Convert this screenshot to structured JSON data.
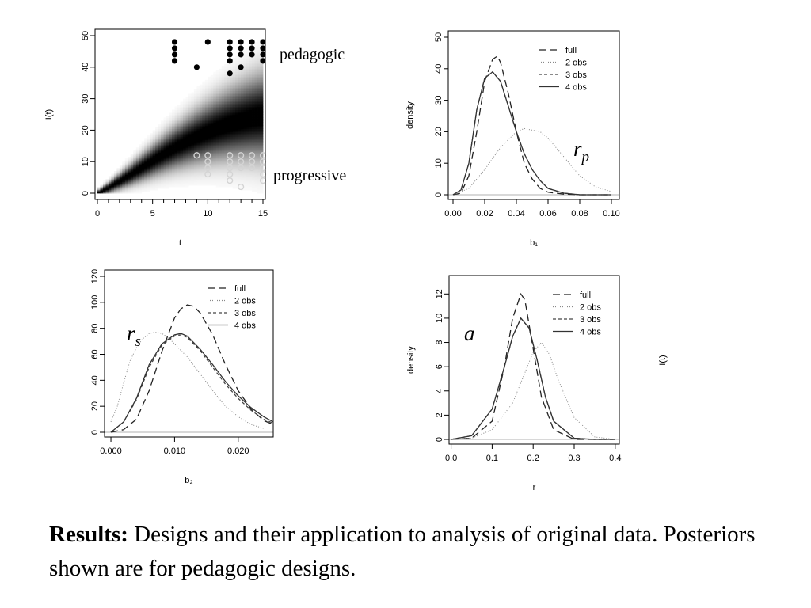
{
  "chart_data": [
    {
      "id": "design",
      "type": "heatmap",
      "xlabel": "t",
      "ylabel": "I(t)",
      "xlim": [
        0,
        15
      ],
      "ylim": [
        0,
        50
      ],
      "xticks": [
        0,
        5,
        10,
        15
      ],
      "yticks": [
        0,
        10,
        20,
        30,
        40,
        50
      ],
      "mean_curve": {
        "t": [
          0,
          1,
          2,
          3,
          4,
          5,
          6,
          7,
          8,
          9,
          10,
          11,
          12,
          13,
          14,
          15
        ],
        "I": [
          0,
          1.8,
          3.8,
          5.9,
          8.1,
          10.3,
          12.4,
          14.4,
          16.2,
          17.9,
          19.4,
          20.8,
          22.0,
          23.0,
          23.9,
          24.6
        ]
      },
      "annotations": [
        {
          "name": "pedagogic",
          "text": "pedagogic"
        },
        {
          "name": "progressive",
          "text": "progressive"
        }
      ],
      "pedagogic_points": [
        [
          7,
          48
        ],
        [
          7,
          46
        ],
        [
          7,
          44
        ],
        [
          7,
          42
        ],
        [
          9,
          40
        ],
        [
          10,
          48
        ],
        [
          12,
          48
        ],
        [
          12,
          46
        ],
        [
          12,
          44
        ],
        [
          12,
          42
        ],
        [
          12,
          38
        ],
        [
          13,
          48
        ],
        [
          13,
          46
        ],
        [
          13,
          44
        ],
        [
          13,
          40
        ],
        [
          14,
          48
        ],
        [
          14,
          46
        ],
        [
          14,
          44
        ],
        [
          15,
          48
        ],
        [
          15,
          46
        ],
        [
          15,
          44
        ],
        [
          15,
          42
        ]
      ],
      "progressive_points": [
        [
          9,
          12
        ],
        [
          10,
          12
        ],
        [
          10,
          10
        ],
        [
          10,
          8
        ],
        [
          10,
          6
        ],
        [
          12,
          12
        ],
        [
          12,
          10
        ],
        [
          12,
          8
        ],
        [
          12,
          6
        ],
        [
          12,
          4
        ],
        [
          13,
          12
        ],
        [
          13,
          10
        ],
        [
          13,
          8
        ],
        [
          13,
          2
        ],
        [
          14,
          12
        ],
        [
          14,
          10
        ],
        [
          14,
          8
        ],
        [
          15,
          12
        ],
        [
          15,
          10
        ],
        [
          15,
          8
        ],
        [
          15,
          6
        ],
        [
          15,
          4
        ]
      ]
    },
    {
      "id": "rp",
      "type": "line",
      "xlabel": "b₁",
      "ylabel": "density",
      "xlim": [
        -0.003,
        0.105
      ],
      "ylim": [
        0,
        50
      ],
      "xticks": [
        "0.00",
        "0.02",
        "0.04",
        "0.06",
        "0.08",
        "0.10"
      ],
      "yticks": [
        0,
        10,
        20,
        30,
        40,
        50
      ],
      "legend": "top-right",
      "annotation": {
        "name": "r",
        "sub": "p"
      },
      "series": [
        {
          "name": "full",
          "dash": "9,5",
          "color": "#222222",
          "x": [
            0,
            0.005,
            0.01,
            0.015,
            0.02,
            0.025,
            0.028,
            0.03,
            0.035,
            0.04,
            0.045,
            0.05,
            0.055,
            0.06,
            0.07,
            0.08,
            0.09,
            0.1
          ],
          "y": [
            0,
            0.5,
            6,
            20,
            36,
            43,
            44,
            42,
            32,
            20,
            10,
            5,
            2,
            0.8,
            0.2,
            0,
            0,
            0
          ]
        },
        {
          "name": "2 obs",
          "dash": "1,2",
          "color": "#888888",
          "x": [
            0,
            0.01,
            0.02,
            0.03,
            0.04,
            0.045,
            0.05,
            0.055,
            0.06,
            0.065,
            0.07,
            0.08,
            0.09,
            0.1
          ],
          "y": [
            0,
            2,
            8,
            15,
            20,
            21,
            20.5,
            20,
            18,
            15,
            12,
            6,
            2.5,
            1
          ]
        },
        {
          "name": "3 obs",
          "dash": "4,3",
          "color": "#444444",
          "x": [
            0,
            0.005,
            0.01,
            0.015,
            0.02,
            0.025,
            0.03,
            0.035,
            0.04,
            0.045,
            0.05,
            0.055,
            0.06,
            0.07,
            0.08,
            0.09,
            0.1
          ],
          "y": [
            0,
            1.5,
            10,
            27,
            37,
            39,
            36,
            28,
            20,
            13,
            8,
            4.5,
            2,
            0.5,
            0,
            0,
            0
          ]
        },
        {
          "name": "4 obs",
          "dash": "",
          "color": "#333333",
          "x": [
            0,
            0.005,
            0.01,
            0.015,
            0.02,
            0.025,
            0.03,
            0.035,
            0.04,
            0.045,
            0.05,
            0.055,
            0.06,
            0.07,
            0.08,
            0.09,
            0.1
          ],
          "y": [
            0,
            1.5,
            10,
            27,
            37,
            39,
            36,
            28,
            20,
            13,
            8,
            4.5,
            2,
            0.5,
            0,
            0,
            0
          ]
        }
      ]
    },
    {
      "id": "rs",
      "type": "line",
      "xlabel": "b₂",
      "ylabel": "",
      "xlim": [
        -0.001,
        0.0255
      ],
      "ylim": [
        0,
        120
      ],
      "xticks": [
        "0.000",
        "0.010",
        "0.020"
      ],
      "xtick_values": [
        0,
        0.01,
        0.02
      ],
      "yticks": [
        0,
        20,
        40,
        60,
        80,
        100,
        120
      ],
      "legend": "top-right",
      "annotation": {
        "name": "r",
        "sub": "s"
      },
      "series": [
        {
          "name": "full",
          "dash": "9,5",
          "color": "#222222",
          "x": [
            0,
            0.002,
            0.004,
            0.006,
            0.008,
            0.01,
            0.011,
            0.012,
            0.013,
            0.014,
            0.016,
            0.018,
            0.02,
            0.022,
            0.024,
            0.0255
          ],
          "y": [
            0,
            2,
            10,
            32,
            62,
            88,
            95,
            98,
            97,
            92,
            75,
            52,
            32,
            18,
            9,
            6
          ]
        },
        {
          "name": "2 obs",
          "dash": "1,2",
          "color": "#888888",
          "x": [
            0,
            0.001,
            0.002,
            0.003,
            0.004,
            0.005,
            0.006,
            0.007,
            0.008,
            0.009,
            0.01,
            0.012,
            0.014,
            0.016,
            0.018,
            0.02,
            0.022,
            0.024
          ],
          "y": [
            8,
            20,
            38,
            55,
            65,
            72,
            76,
            77,
            76,
            73,
            68,
            58,
            45,
            32,
            20,
            12,
            6,
            3
          ]
        },
        {
          "name": "3 obs",
          "dash": "4,3",
          "color": "#444444",
          "x": [
            0,
            0.002,
            0.004,
            0.006,
            0.008,
            0.01,
            0.011,
            0.012,
            0.014,
            0.016,
            0.018,
            0.02,
            0.022,
            0.024,
            0.0255
          ],
          "y": [
            0,
            8,
            25,
            50,
            67,
            74,
            75,
            73,
            63,
            50,
            37,
            26,
            17,
            10,
            7
          ]
        },
        {
          "name": "4 obs",
          "dash": "",
          "color": "#333333",
          "x": [
            0,
            0.002,
            0.004,
            0.006,
            0.008,
            0.01,
            0.011,
            0.012,
            0.014,
            0.016,
            0.018,
            0.02,
            0.022,
            0.024,
            0.0255
          ],
          "y": [
            0,
            8,
            26,
            52,
            68,
            75,
            76,
            74,
            64,
            52,
            39,
            28,
            19,
            12,
            8
          ]
        }
      ]
    },
    {
      "id": "a",
      "type": "line",
      "xlabel": "r",
      "ylabel": "density",
      "xlim": [
        -0.005,
        0.41
      ],
      "ylim": [
        0,
        13
      ],
      "xticks": [
        "0.0",
        "0.1",
        "0.2",
        "0.3",
        "0.4"
      ],
      "yticks": [
        0,
        2,
        4,
        6,
        8,
        10,
        12
      ],
      "legend": "top-right",
      "annotation": {
        "name": "a",
        "sub": ""
      },
      "series": [
        {
          "name": "full",
          "dash": "9,5",
          "color": "#222222",
          "x": [
            0,
            0.05,
            0.1,
            0.13,
            0.15,
            0.17,
            0.18,
            0.2,
            0.22,
            0.25,
            0.3,
            0.35,
            0.4
          ],
          "y": [
            0,
            0.1,
            1.5,
            6,
            10,
            12,
            11.5,
            7.5,
            3.5,
            0.8,
            0,
            0,
            0
          ]
        },
        {
          "name": "2 obs",
          "dash": "1,2",
          "color": "#888888",
          "x": [
            0,
            0.05,
            0.1,
            0.15,
            0.18,
            0.2,
            0.22,
            0.24,
            0.26,
            0.3,
            0.35,
            0.4
          ],
          "y": [
            0,
            0.1,
            0.8,
            3,
            5.5,
            7.2,
            8,
            7,
            5,
            1.8,
            0.2,
            0
          ]
        },
        {
          "name": "3 obs",
          "dash": "4,3",
          "color": "#444444",
          "x": [
            0,
            0.05,
            0.1,
            0.13,
            0.15,
            0.17,
            0.19,
            0.21,
            0.23,
            0.25,
            0.3,
            0.35,
            0.4
          ],
          "y": [
            0,
            0.3,
            2.5,
            6,
            8.5,
            10,
            9.2,
            6.5,
            3.5,
            1.5,
            0.1,
            0,
            0
          ]
        },
        {
          "name": "4 obs",
          "dash": "",
          "color": "#333333",
          "x": [
            0,
            0.05,
            0.1,
            0.13,
            0.15,
            0.17,
            0.19,
            0.21,
            0.23,
            0.25,
            0.3,
            0.35,
            0.4
          ],
          "y": [
            0,
            0.3,
            2.5,
            6,
            8.5,
            10,
            9.2,
            6.5,
            3.5,
            1.5,
            0.1,
            0,
            0
          ]
        }
      ]
    }
  ],
  "stray_label": "I(t)",
  "caption": {
    "bold": "Results:",
    "text": " Designs and their application to analysis of original data.  Posteriors shown are for pedagogic designs."
  }
}
